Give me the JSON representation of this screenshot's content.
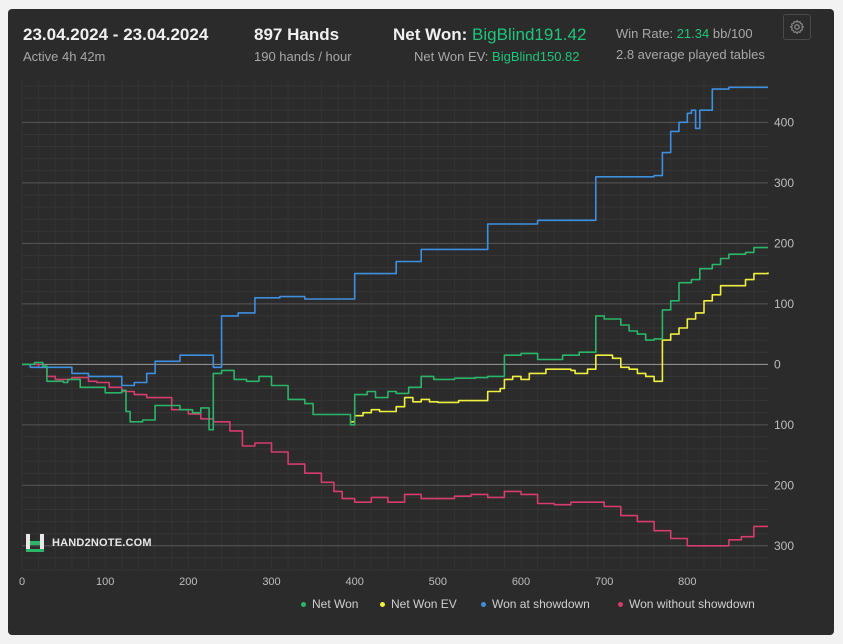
{
  "header": {
    "date_range": "23.04.2024 - 23.04.2024",
    "active_time": "Active 4h 42m",
    "hands": "897 Hands",
    "hands_per_hour": "190 hands / hour",
    "net_won_label": "Net Won:",
    "net_won_value": "BigBlind191.42",
    "net_won_ev_label": "Net Won  EV:",
    "net_won_ev_value": "BigBlind150.82",
    "win_rate_label": "Win Rate:",
    "win_rate_value": "21.34",
    "win_rate_unit": "bb/100",
    "tables": "2.8 average played tables"
  },
  "logo": {
    "text": "HAND2NOTE.COM"
  },
  "icons": {
    "settings": "gear-icon"
  },
  "colors": {
    "background": "#2b2b2b",
    "net_won": "#2bb568",
    "net_won_ev": "#f0f040",
    "showdown": "#3f8fe0",
    "no_showdown": "#d63c6c",
    "accent_green": "#1ec47a"
  },
  "chart_data": {
    "type": "line",
    "xlim": [
      0,
      897
    ],
    "ylim": [
      -340,
      470
    ],
    "x_ticks": [
      0,
      100,
      200,
      300,
      400,
      500,
      600,
      700,
      800
    ],
    "y_ticks": [
      400,
      300,
      200,
      100,
      0,
      -100,
      -200,
      -300
    ],
    "y_tick_labels": [
      "400",
      "300",
      "200",
      "100",
      "0",
      "100",
      "200",
      "300"
    ],
    "grid": true,
    "legend_position": "bottom-right",
    "series": [
      {
        "name": "Net Won",
        "color": "#2bb568",
        "points": [
          [
            0,
            0
          ],
          [
            15,
            3
          ],
          [
            25,
            -3
          ],
          [
            30,
            -28
          ],
          [
            50,
            -30
          ],
          [
            55,
            -25
          ],
          [
            70,
            -38
          ],
          [
            100,
            -47
          ],
          [
            120,
            -43
          ],
          [
            125,
            -78
          ],
          [
            130,
            -95
          ],
          [
            145,
            -92
          ],
          [
            160,
            -68
          ],
          [
            190,
            -75
          ],
          [
            205,
            -80
          ],
          [
            215,
            -72
          ],
          [
            225,
            -108
          ],
          [
            230,
            -15
          ],
          [
            240,
            -10
          ],
          [
            255,
            -25
          ],
          [
            270,
            -28
          ],
          [
            285,
            -20
          ],
          [
            300,
            -35
          ],
          [
            320,
            -58
          ],
          [
            340,
            -65
          ],
          [
            350,
            -83
          ],
          [
            395,
            -100
          ],
          [
            400,
            -50
          ],
          [
            415,
            -45
          ],
          [
            425,
            -55
          ],
          [
            440,
            -45
          ],
          [
            450,
            -48
          ],
          [
            465,
            -38
          ],
          [
            480,
            -20
          ],
          [
            495,
            -25
          ],
          [
            510,
            -25
          ],
          [
            520,
            -23
          ],
          [
            545,
            -22
          ],
          [
            560,
            -20
          ],
          [
            570,
            -20
          ],
          [
            580,
            15
          ],
          [
            600,
            18
          ],
          [
            620,
            8
          ],
          [
            650,
            15
          ],
          [
            660,
            15
          ],
          [
            670,
            20
          ],
          [
            680,
            20
          ],
          [
            690,
            80
          ],
          [
            700,
            75
          ],
          [
            720,
            65
          ],
          [
            730,
            55
          ],
          [
            740,
            50
          ],
          [
            750,
            40
          ],
          [
            760,
            42
          ],
          [
            770,
            90
          ],
          [
            780,
            105
          ],
          [
            790,
            135
          ],
          [
            805,
            140
          ],
          [
            815,
            158
          ],
          [
            830,
            165
          ],
          [
            840,
            175
          ],
          [
            850,
            182
          ],
          [
            870,
            185
          ],
          [
            880,
            193
          ],
          [
            897,
            193
          ]
        ]
      },
      {
        "name": "Net Won  EV",
        "color": "#f0f040",
        "points": [
          [
            395,
            -95
          ],
          [
            400,
            -85
          ],
          [
            410,
            -80
          ],
          [
            420,
            -75
          ],
          [
            430,
            -78
          ],
          [
            440,
            -78
          ],
          [
            450,
            -70
          ],
          [
            460,
            -55
          ],
          [
            470,
            -62
          ],
          [
            480,
            -58
          ],
          [
            490,
            -62
          ],
          [
            500,
            -63
          ],
          [
            515,
            -63
          ],
          [
            525,
            -60
          ],
          [
            535,
            -60
          ],
          [
            560,
            -45
          ],
          [
            575,
            -40
          ],
          [
            580,
            -25
          ],
          [
            590,
            -20
          ],
          [
            600,
            -25
          ],
          [
            610,
            -15
          ],
          [
            620,
            -15
          ],
          [
            630,
            -8
          ],
          [
            640,
            -8
          ],
          [
            650,
            -8
          ],
          [
            660,
            -10
          ],
          [
            665,
            -15
          ],
          [
            680,
            -8
          ],
          [
            690,
            15
          ],
          [
            700,
            15
          ],
          [
            710,
            10
          ],
          [
            720,
            -5
          ],
          [
            730,
            -8
          ],
          [
            740,
            -15
          ],
          [
            750,
            -20
          ],
          [
            760,
            -28
          ],
          [
            770,
            40
          ],
          [
            780,
            50
          ],
          [
            790,
            60
          ],
          [
            800,
            75
          ],
          [
            810,
            85
          ],
          [
            820,
            105
          ],
          [
            830,
            115
          ],
          [
            840,
            130
          ],
          [
            855,
            130
          ],
          [
            870,
            140
          ],
          [
            880,
            150
          ],
          [
            897,
            152
          ]
        ]
      },
      {
        "name": "Won at showdown",
        "color": "#3f8fe0",
        "points": [
          [
            0,
            0
          ],
          [
            10,
            -5
          ],
          [
            45,
            -5
          ],
          [
            60,
            -15
          ],
          [
            80,
            -20
          ],
          [
            100,
            -20
          ],
          [
            120,
            -35
          ],
          [
            135,
            -30
          ],
          [
            150,
            -15
          ],
          [
            160,
            5
          ],
          [
            190,
            15
          ],
          [
            220,
            15
          ],
          [
            230,
            -5
          ],
          [
            240,
            80
          ],
          [
            260,
            85
          ],
          [
            280,
            110
          ],
          [
            310,
            112
          ],
          [
            340,
            108
          ],
          [
            360,
            108
          ],
          [
            395,
            108
          ],
          [
            400,
            150
          ],
          [
            450,
            170
          ],
          [
            480,
            190
          ],
          [
            500,
            190
          ],
          [
            540,
            190
          ],
          [
            560,
            232
          ],
          [
            580,
            232
          ],
          [
            620,
            238
          ],
          [
            660,
            238
          ],
          [
            690,
            310
          ],
          [
            710,
            310
          ],
          [
            740,
            310
          ],
          [
            760,
            312
          ],
          [
            770,
            350
          ],
          [
            780,
            385
          ],
          [
            790,
            400
          ],
          [
            800,
            415
          ],
          [
            805,
            420
          ],
          [
            810,
            390
          ],
          [
            815,
            420
          ],
          [
            830,
            455
          ],
          [
            850,
            458
          ],
          [
            897,
            458
          ]
        ]
      },
      {
        "name": "Won without showdown",
        "color": "#d63c6c",
        "points": [
          [
            0,
            0
          ],
          [
            20,
            -5
          ],
          [
            30,
            -20
          ],
          [
            40,
            -25
          ],
          [
            60,
            -22
          ],
          [
            80,
            -28
          ],
          [
            90,
            -30
          ],
          [
            105,
            -38
          ],
          [
            120,
            -45
          ],
          [
            135,
            -50
          ],
          [
            150,
            -55
          ],
          [
            180,
            -75
          ],
          [
            200,
            -82
          ],
          [
            215,
            -90
          ],
          [
            230,
            -95
          ],
          [
            250,
            -110
          ],
          [
            265,
            -135
          ],
          [
            280,
            -130
          ],
          [
            300,
            -145
          ],
          [
            320,
            -165
          ],
          [
            340,
            -180
          ],
          [
            360,
            -195
          ],
          [
            375,
            -210
          ],
          [
            385,
            -222
          ],
          [
            400,
            -228
          ],
          [
            420,
            -220
          ],
          [
            440,
            -228
          ],
          [
            460,
            -215
          ],
          [
            480,
            -222
          ],
          [
            500,
            -222
          ],
          [
            520,
            -218
          ],
          [
            540,
            -215
          ],
          [
            560,
            -220
          ],
          [
            580,
            -210
          ],
          [
            600,
            -215
          ],
          [
            620,
            -230
          ],
          [
            640,
            -232
          ],
          [
            660,
            -228
          ],
          [
            680,
            -228
          ],
          [
            700,
            -235
          ],
          [
            720,
            -250
          ],
          [
            740,
            -260
          ],
          [
            760,
            -275
          ],
          [
            780,
            -288
          ],
          [
            800,
            -300
          ],
          [
            810,
            -300
          ],
          [
            830,
            -300
          ],
          [
            850,
            -290
          ],
          [
            865,
            -285
          ],
          [
            880,
            -268
          ],
          [
            897,
            -268
          ]
        ]
      }
    ]
  }
}
